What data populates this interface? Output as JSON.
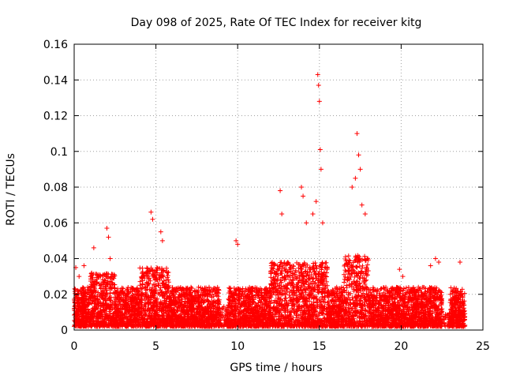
{
  "chart_data": {
    "type": "scatter",
    "title": "Day 098 of 2025, Rate Of TEC Index for receiver kitg",
    "xlabel": "GPS time / hours",
    "ylabel": "ROTI / TECUs",
    "xlim": [
      0,
      25
    ],
    "ylim": [
      0,
      0.16
    ],
    "xticks": [
      0,
      5,
      10,
      15,
      20,
      25
    ],
    "xtick_labels": [
      "0",
      "5",
      "10",
      "15",
      "20",
      "25"
    ],
    "yticks": [
      0,
      0.02,
      0.04,
      0.06,
      0.08,
      0.1,
      0.12,
      0.14,
      0.16
    ],
    "ytick_labels": [
      "0",
      "0.02",
      "0.04",
      "0.06",
      "0.08",
      "0.1",
      "0.12",
      "0.14",
      "0.16"
    ],
    "grid": true,
    "marker": "+",
    "color": "#ff0000",
    "series": [
      {
        "name": "ROTI",
        "x": [
          0.1,
          0.3,
          0.6,
          1.0,
          1.2,
          2.0,
          2.1,
          2.2,
          4.7,
          4.8,
          5.3,
          5.4,
          9.9,
          10.0,
          12.6,
          12.7,
          13.9,
          14.0,
          14.2,
          14.6,
          14.8,
          14.9,
          14.95,
          15.0,
          15.05,
          15.1,
          15.2,
          17.0,
          17.2,
          17.3,
          17.4,
          17.5,
          17.6,
          17.8,
          19.9,
          20.1,
          21.8,
          22.1,
          22.3,
          23.6
        ],
        "y": [
          0.035,
          0.03,
          0.036,
          0.03,
          0.046,
          0.057,
          0.052,
          0.04,
          0.066,
          0.062,
          0.055,
          0.05,
          0.05,
          0.048,
          0.078,
          0.065,
          0.08,
          0.075,
          0.06,
          0.065,
          0.072,
          0.143,
          0.137,
          0.128,
          0.101,
          0.09,
          0.06,
          0.08,
          0.085,
          0.11,
          0.098,
          0.09,
          0.07,
          0.065,
          0.034,
          0.03,
          0.036,
          0.04,
          0.038,
          0.038
        ]
      }
    ]
  }
}
